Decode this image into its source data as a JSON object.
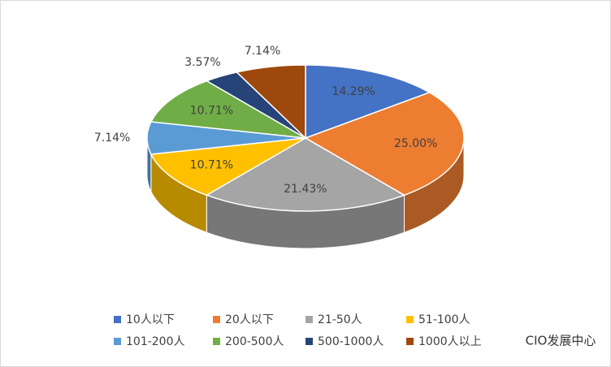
{
  "chart_data": {
    "type": "pie3d",
    "categories": [
      "10人以下",
      "20人以下",
      "21-50人",
      "51-100人",
      "101-200人",
      "200-500人",
      "500-1000人",
      "1000人以上"
    ],
    "values": [
      14.29,
      25.0,
      21.43,
      10.71,
      7.14,
      10.71,
      3.57,
      7.14
    ],
    "value_labels": [
      "14.29%",
      "25.00%",
      "21.43%",
      "10.71%",
      "7.14%",
      "10.71%",
      "3.57%",
      "7.14%"
    ],
    "colors": [
      "#4472c4",
      "#ed7d31",
      "#a5a5a5",
      "#ffc000",
      "#5b9bd5",
      "#70ad47",
      "#264478",
      "#9e480e"
    ],
    "legend": "bottom",
    "watermark": "CIO发展中心"
  }
}
